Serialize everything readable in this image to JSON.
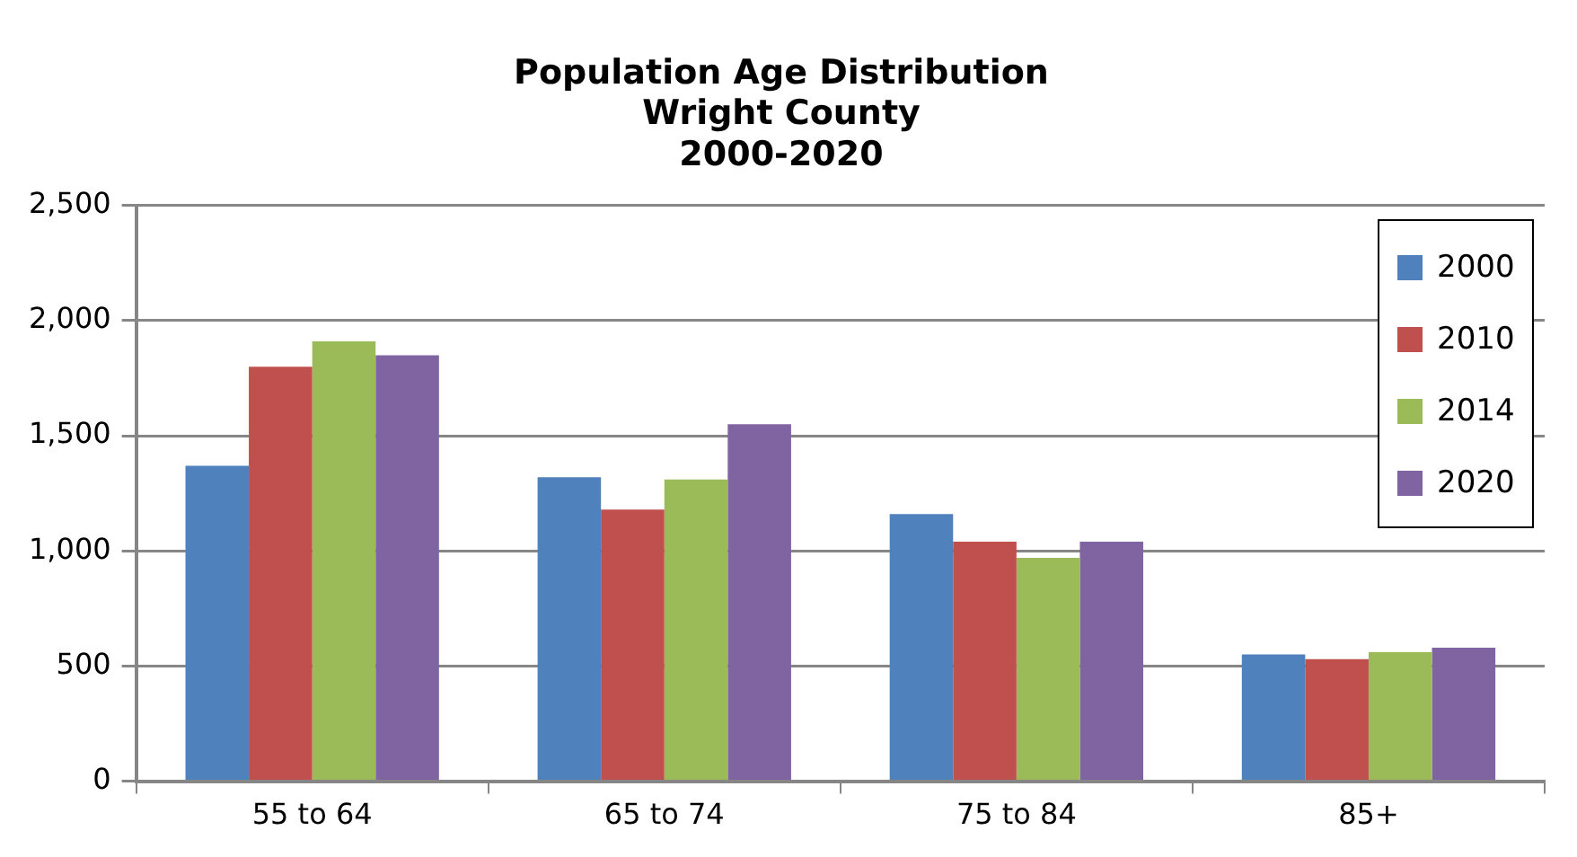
{
  "chart_data": {
    "type": "bar",
    "title": "Population Age Distribution\nWright County\n2000-2020",
    "categories": [
      "55 to 64",
      "65 to 74",
      "75 to 84",
      "85+"
    ],
    "series": [
      {
        "name": "2000",
        "color": "#4f81bd",
        "values": [
          1370,
          1320,
          1160,
          550
        ]
      },
      {
        "name": "2010",
        "color": "#c0504d",
        "values": [
          1800,
          1180,
          1040,
          530
        ]
      },
      {
        "name": "2014",
        "color": "#9bbb59",
        "values": [
          1910,
          1310,
          970,
          560
        ]
      },
      {
        "name": "2020",
        "color": "#8064a2",
        "values": [
          1850,
          1550,
          1040,
          580
        ]
      }
    ],
    "ylim": [
      0,
      2500
    ],
    "yticks": [
      0,
      500,
      {
        "value": 1000,
        "label": "1,000"
      },
      {
        "value": 1500,
        "label": "1,500"
      },
      {
        "value": 2000,
        "label": "2,000"
      },
      {
        "value": 2500,
        "label": "2,500"
      }
    ],
    "grid": "y",
    "legend": "top right"
  }
}
